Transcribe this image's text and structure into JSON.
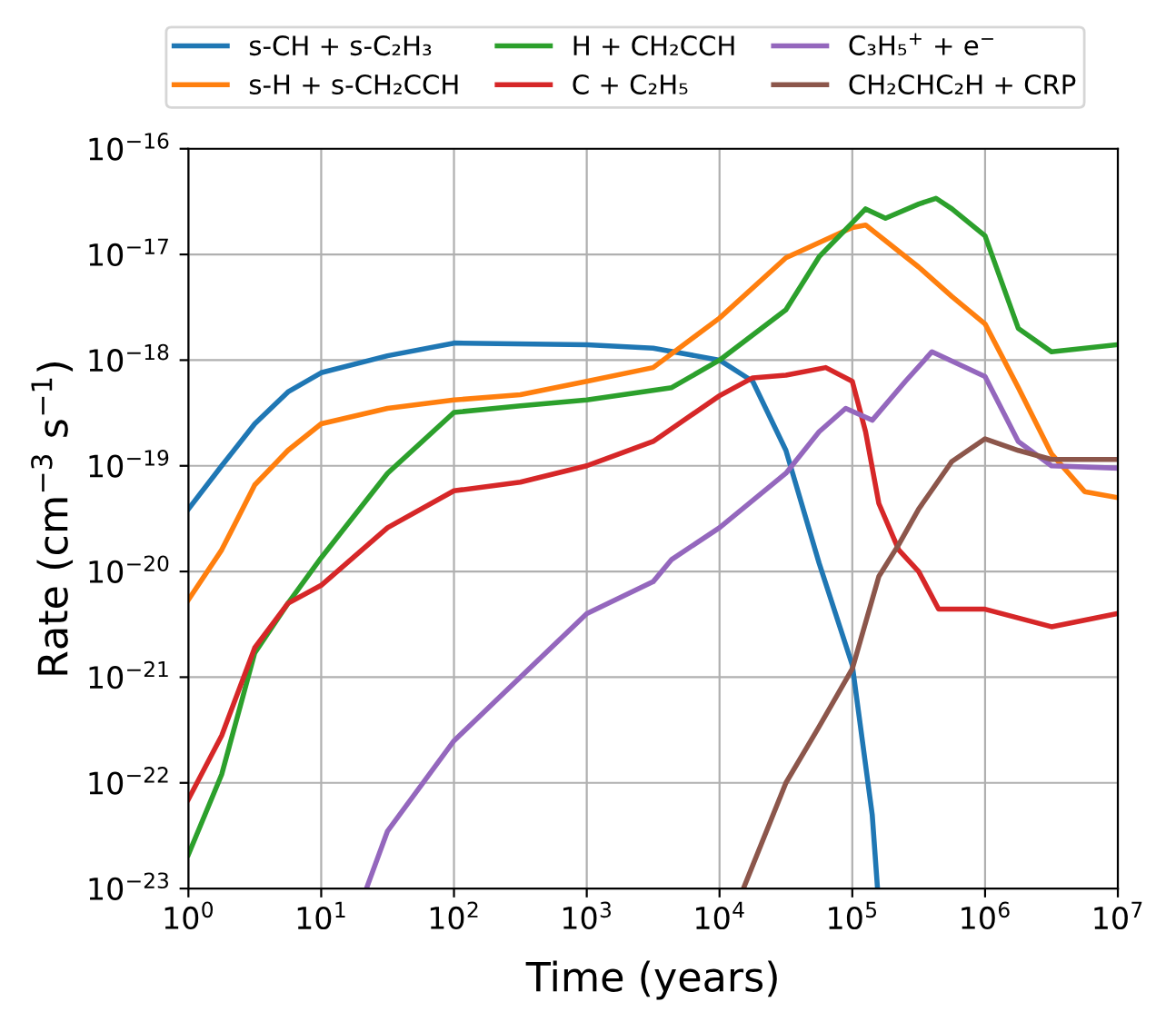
{
  "chart_data": {
    "type": "line",
    "xlabel": "Time (years)",
    "ylabel": "Rate (cm$^{−3}$ s$^{−1}$)",
    "log": "xy",
    "grid": true,
    "legend": "top",
    "xlim": [
      1,
      10000000
    ],
    "ylim": [
      1e-23,
      1e-16
    ],
    "xticks": [
      {
        "value": 1,
        "label": "10$^{0}$"
      },
      {
        "value": 10,
        "label": "10$^{1}$"
      },
      {
        "value": 100,
        "label": "10$^{2}$"
      },
      {
        "value": 1000,
        "label": "10$^{3}$"
      },
      {
        "value": 10000,
        "label": "10$^{4}$"
      },
      {
        "value": 100000,
        "label": "10$^{5}$"
      },
      {
        "value": 1000000,
        "label": "10$^{6}$"
      },
      {
        "value": 10000000,
        "label": "10$^{7}$"
      }
    ],
    "yticks": [
      {
        "value": 1e-23,
        "label": "10$^{−23}$"
      },
      {
        "value": 1e-22,
        "label": "10$^{−22}$"
      },
      {
        "value": 1e-21,
        "label": "10$^{−21}$"
      },
      {
        "value": 1e-20,
        "label": "10$^{−20}$"
      },
      {
        "value": 1e-19,
        "label": "10$^{−19}$"
      },
      {
        "value": 1e-18,
        "label": "10$^{−18}$"
      },
      {
        "value": 1e-17,
        "label": "10$^{−17}$"
      },
      {
        "value": 1e-16,
        "label": "10$^{−16}$"
      }
    ],
    "series": [
      {
        "name": "s-CH + s-C₂H₃",
        "color": "#1f77b4",
        "x": [
          1,
          1.78,
          3.16,
          5.62,
          10,
          31.6,
          100,
          1000,
          3162,
          10000,
          17783,
          31623,
          56234,
          100000,
          141254,
          154882
        ],
        "values": [
          3.9e-20,
          1e-19,
          2.5e-19,
          5e-19,
          7.6e-19,
          1.1e-18,
          1.45e-18,
          1.4e-18,
          1.3e-18,
          1e-18,
          6.3e-19,
          1.4e-19,
          1.2e-20,
          1.3e-21,
          5e-23,
          1e-23
        ]
      },
      {
        "name": "s-H + s-CH₂CCH",
        "color": "#ff7f0e",
        "x": [
          1,
          1.78,
          3.16,
          5.62,
          10,
          31.6,
          100,
          316,
          1000,
          3162,
          10000,
          31623,
          100000,
          125893,
          316228,
          562341,
          1000000,
          1778279,
          3162278,
          5623413,
          10000000
        ],
        "values": [
          5.4e-21,
          1.6e-20,
          6.6e-20,
          1.4e-19,
          2.5e-19,
          3.5e-19,
          4.2e-19,
          4.7e-19,
          6.3e-19,
          8.5e-19,
          2.5e-18,
          9.3e-18,
          1.8e-17,
          1.9e-17,
          7.6e-18,
          4e-18,
          2.2e-18,
          5.5e-19,
          1.3e-19,
          5.7e-20,
          5e-20
        ]
      },
      {
        "name": "H + CH₂CCH",
        "color": "#2ca02c",
        "x": [
          1,
          1.78,
          3.16,
          5.62,
          10,
          31.6,
          100,
          316,
          1000,
          4365,
          10000,
          31623,
          56234,
          100000,
          125893,
          177828,
          316228,
          426580,
          562341,
          1000000,
          1778279,
          3162278,
          10000000
        ],
        "values": [
          2.1e-23,
          1.2e-22,
          1.7e-21,
          5e-21,
          1.35e-20,
          8.5e-20,
          3.2e-19,
          3.7e-19,
          4.2e-19,
          5.5e-19,
          1e-18,
          3e-18,
          9.5e-18,
          2e-17,
          2.7e-17,
          2.2e-17,
          3e-17,
          3.4e-17,
          2.7e-17,
          1.5e-17,
          2e-18,
          1.2e-18,
          1.4e-18
        ]
      },
      {
        "name": "C + C₂H₅",
        "color": "#d62728",
        "x": [
          1,
          1.78,
          3.16,
          5.62,
          10,
          31.6,
          100,
          316,
          1000,
          3162,
          10000,
          17783,
          31623,
          63096,
          100000,
          125893,
          158489,
          223872,
          316228,
          446684,
          1000000,
          3162278,
          10000000
        ],
        "values": [
          7e-23,
          2.8e-22,
          1.9e-21,
          5e-21,
          7.4e-21,
          2.6e-20,
          5.8e-20,
          7e-20,
          1e-19,
          1.7e-19,
          4.6e-19,
          6.8e-19,
          7.2e-19,
          8.5e-19,
          6.3e-19,
          2.1e-19,
          4.4e-20,
          1.6e-20,
          1e-20,
          4.4e-21,
          4.4e-21,
          3e-21,
          4e-21
        ]
      },
      {
        "name": "C₃H₅$^{+}$ + e$^{−}$",
        "color": "#9467bd",
        "x": [
          21.9,
          31.6,
          100,
          316,
          1000,
          3162,
          4365,
          10000,
          31623,
          56234,
          89125,
          141254,
          251189,
          398107,
          1000000,
          1778279,
          3162278,
          10000000
        ],
        "values": [
          1e-23,
          3.5e-23,
          2.5e-22,
          1e-21,
          4e-21,
          8e-21,
          1.3e-20,
          2.6e-20,
          8.5e-20,
          2.1e-19,
          3.5e-19,
          2.7e-19,
          6.3e-19,
          1.2e-18,
          7e-19,
          1.7e-19,
          1e-19,
          9.5e-20
        ]
      },
      {
        "name": "CH₂CHC₂H + CRP",
        "color": "#8c564b",
        "x": [
          15136,
          31623,
          56234,
          100000,
          158489,
          223872,
          316228,
          562341,
          1000000,
          1778279,
          3162278,
          10000000
        ],
        "values": [
          1e-23,
          1e-22,
          3.4e-22,
          1.2e-21,
          9e-21,
          1.8e-20,
          3.9e-20,
          1.1e-19,
          1.8e-19,
          1.4e-19,
          1.15e-19,
          1.15e-19
        ]
      }
    ]
  }
}
